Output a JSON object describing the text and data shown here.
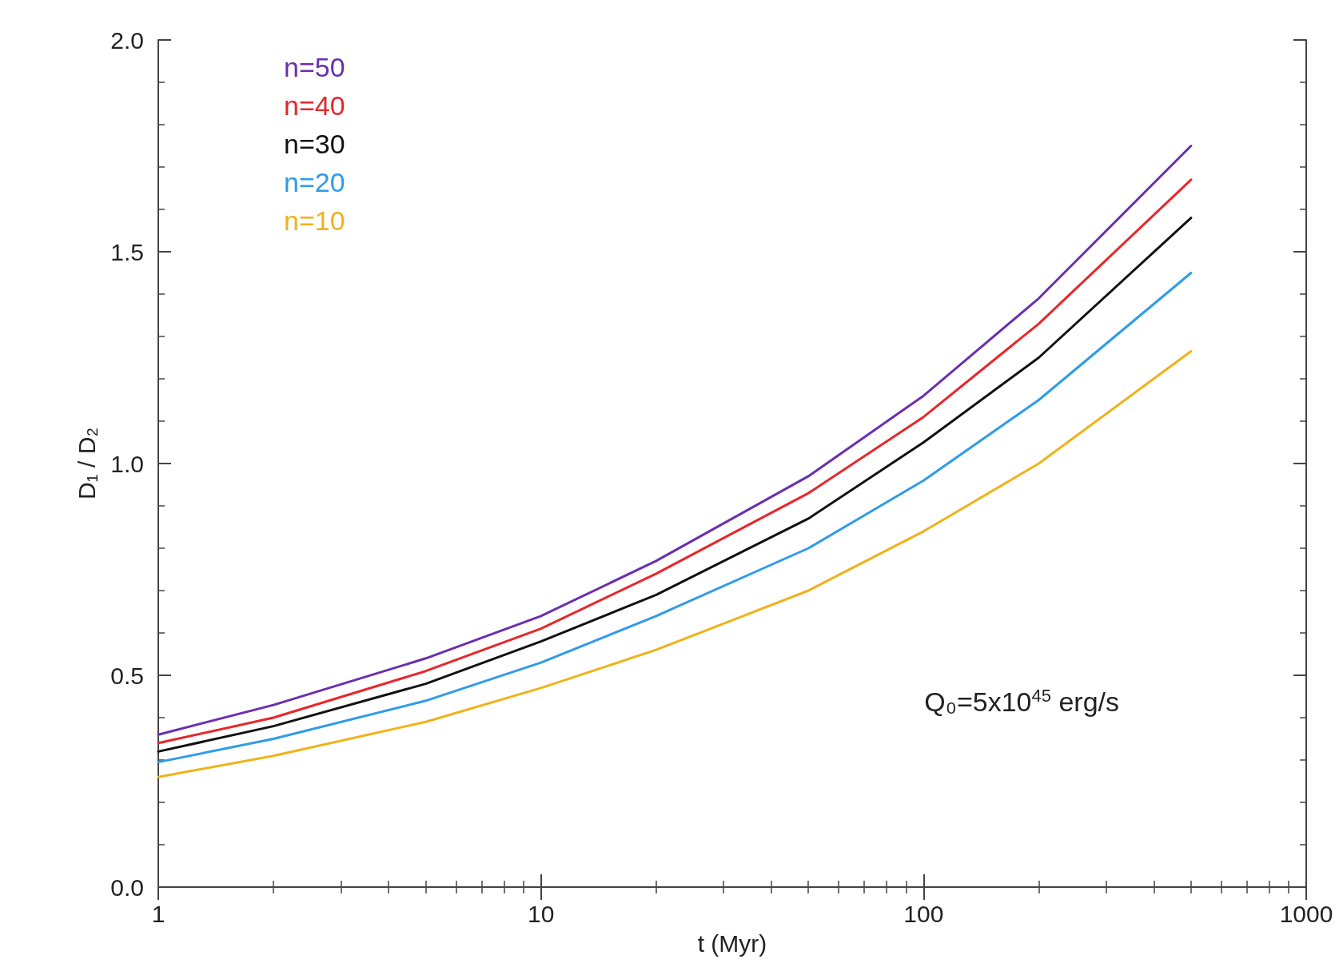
{
  "chart_data": {
    "type": "line",
    "xlabel": "t (Myr)",
    "ylabel": "D₁ / D₂",
    "x": [
      1,
      2,
      5,
      10,
      20,
      50,
      100,
      200,
      500
    ],
    "series": [
      {
        "name": "n=50",
        "color": "#6a2fb0",
        "values": [
          0.36,
          0.43,
          0.54,
          0.64,
          0.77,
          0.97,
          1.16,
          1.39,
          1.75
        ]
      },
      {
        "name": "n=40",
        "color": "#e8262a",
        "values": [
          0.34,
          0.4,
          0.51,
          0.61,
          0.74,
          0.93,
          1.11,
          1.33,
          1.67
        ]
      },
      {
        "name": "n=30",
        "color": "#111111",
        "values": [
          0.32,
          0.38,
          0.48,
          0.58,
          0.69,
          0.87,
          1.05,
          1.25,
          1.58
        ]
      },
      {
        "name": "n=20",
        "color": "#2f9be8",
        "values": [
          0.295,
          0.35,
          0.44,
          0.53,
          0.64,
          0.8,
          0.96,
          1.15,
          1.45
        ]
      },
      {
        "name": "n=10",
        "color": "#f0b21a",
        "values": [
          0.26,
          0.31,
          0.39,
          0.47,
          0.56,
          0.7,
          0.84,
          1.0,
          1.265
        ]
      }
    ],
    "log": "x",
    "xlim": [
      1,
      1000
    ],
    "xticks": [
      1,
      10,
      100,
      1000
    ],
    "ylim": [
      0,
      2
    ],
    "yticks": [
      {
        "value": 0,
        "label": "0.0"
      },
      {
        "value": 0.5,
        "label": "0.5"
      },
      {
        "value": 1,
        "label": "1.0"
      },
      {
        "value": 1.5,
        "label": "1.5"
      },
      {
        "value": 2,
        "label": "2.0"
      }
    ],
    "grid": false,
    "legend": "top left",
    "marker": "none",
    "line_style": "solid",
    "annotations": [
      "Q₀=5x10$^{45}$ erg/s"
    ]
  }
}
